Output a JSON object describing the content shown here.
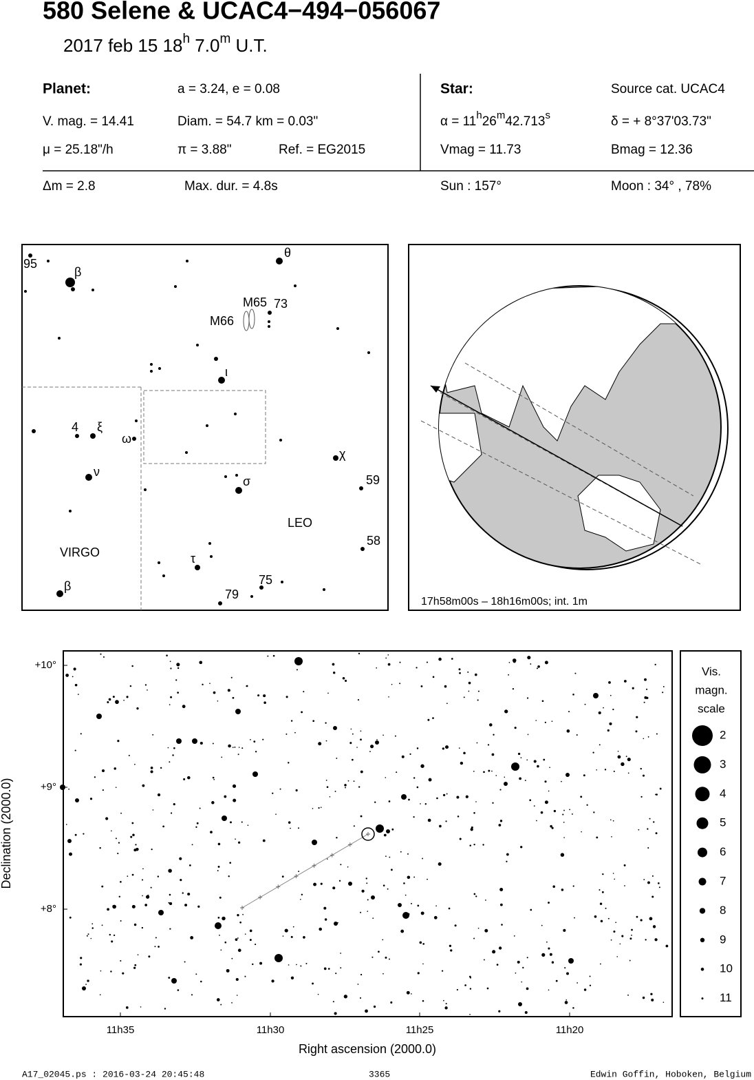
{
  "header": {
    "title": "580 Selene  &  UCAC4−494−056067",
    "subtitle": [
      "2017 feb 15  18",
      "h",
      " 7.0",
      "m",
      " U.T."
    ]
  },
  "info": {
    "cells": [
      "Planet:",
      "a = 3.24, e = 0.08",
      "Star:",
      "Source cat.  UCAC4",
      "V. mag. = 14.41",
      "Diam. = 54.7 km = 0.03\"",
      [
        "α = 11",
        "h",
        "26",
        "m",
        "42.713",
        "s"
      ],
      "δ = + 8°37'03.73\"",
      "μ =  25.18\"/h",
      "π =  3.88\"",
      "Ref. = EG2015",
      "Vmag = 11.73",
      "Bmag = 12.36",
      "Δm = 2.8",
      "Max. dur. = 4.8s",
      "Sun : 157°",
      "Moon :  34° , 78%"
    ]
  },
  "finder": {
    "labels": [
      "95",
      "β",
      "θ",
      "M65",
      "73",
      "M66",
      "ι",
      "4",
      "ξ",
      "ω",
      "χ",
      "ν",
      "59",
      "σ",
      "LEO",
      "58",
      "VIRGO",
      "τ",
      "75",
      "β",
      "79"
    ]
  },
  "globe": {
    "caption": "17h58m00s – 18h16m00s; int.  1m"
  },
  "star_chart": {
    "yticks": [
      "+10°",
      "+9°",
      "+8°"
    ],
    "xticks": [
      "11h35",
      "11h30",
      "11h25",
      "11h20"
    ],
    "xlabel": "Right ascension (2000.0)",
    "ylabel": "Declination (2000.0)",
    "scale_title": [
      "Vis.",
      "magn.",
      "scale"
    ],
    "scale": [
      "2",
      "3",
      "4",
      "5",
      "6",
      "7",
      "8",
      "9",
      "10",
      "11"
    ]
  },
  "footer": {
    "file": "A17_02045.ps : 2016-03-24 20:45:48",
    "page": "3365",
    "author": "Edwin Goffin, Hoboken, Belgium"
  }
}
